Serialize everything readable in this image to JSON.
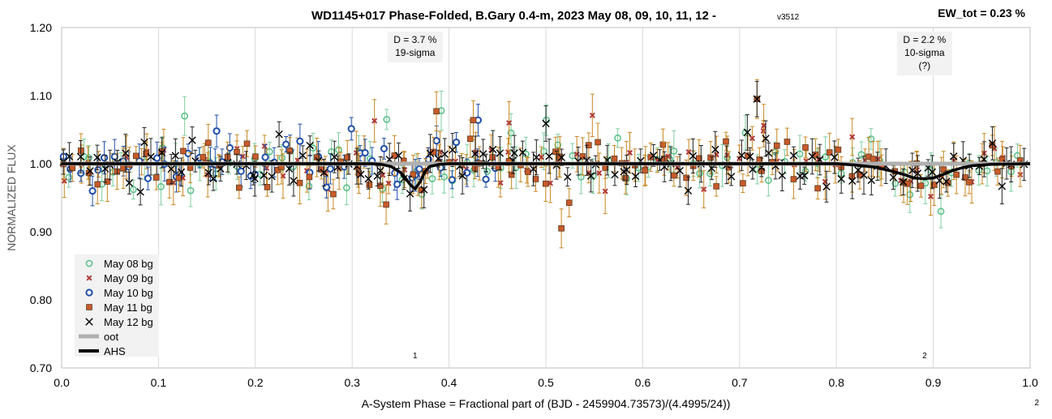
{
  "chart_data": {
    "type": "scatter",
    "title": "WD1145+017 Phase-Folded, B.Gary 0.4-m, 2023 May 08, 09, 10, 11, 12 -",
    "version": "v3512",
    "ew_total": "EW_tot = 0.23 %",
    "xlabel": "A-System Phase = Fractional part of (BJD - 2459904.73573)/(4.4995/24))",
    "ylabel": "NORMALIZED FLUX",
    "xlim": [
      0.0,
      1.0
    ],
    "ylim": [
      0.7,
      1.2
    ],
    "xticks": [
      "0.0",
      "0.1",
      "0.2",
      "0.3",
      "0.4",
      "0.5",
      "0.6",
      "0.7",
      "0.8",
      "0.9",
      "1.0"
    ],
    "yticks": [
      "0.70",
      "0.80",
      "0.90",
      "1.00",
      "1.10",
      "1.20"
    ],
    "grid": "vertical",
    "legend_position": "bottom-left",
    "corner_label": "2",
    "annotations": [
      {
        "id": "dip1",
        "x": 0.365,
        "line1": "D = 3.7 %",
        "line2": "19-sigma",
        "line3": "",
        "marker": "1"
      },
      {
        "id": "dip2",
        "x": 0.891,
        "line1": "D = 2.2 %",
        "line2": "10-sigma",
        "line3": "(?)",
        "marker": "2"
      }
    ],
    "colors": {
      "may08": "#5fc28c",
      "may09": "#b03a3a",
      "may10": "#1f4fa8",
      "may11": "#c85a2a",
      "may12": "#000000",
      "may08_err": "#7fcf9f",
      "may09_err": "#c8861f",
      "may10_err": "#1f4fa8",
      "may11_err": "#c8861f",
      "may12_err": "#222222",
      "oot": "#b0b0b0",
      "ahs": "#000000"
    },
    "series": [
      {
        "key": "may08",
        "name": "May 08 bg",
        "marker": "open-circle",
        "x_start": 0.005,
        "x_end": 0.995,
        "count": 90,
        "seed": 11,
        "scatter": 0.028,
        "err": 0.022,
        "pts": [
          [
            0.127,
            1.07
          ],
          [
            0.392,
            1.078
          ]
        ]
      },
      {
        "key": "may09",
        "name": "May 09 bg",
        "marker": "x-small",
        "x_start": 0.0,
        "x_end": 0.995,
        "count": 80,
        "seed": 23,
        "scatter": 0.026,
        "err": 0.024,
        "pts": [
          [
            0.548,
            1.071
          ],
          [
            0.725,
            1.056
          ],
          [
            0.323,
            1.063
          ],
          [
            0.462,
            1.06
          ]
        ]
      },
      {
        "key": "may10",
        "name": "May 10 bg",
        "marker": "open-circle-blue",
        "x_start": 0.0,
        "x_end": 0.45,
        "count": 52,
        "seed": 37,
        "scatter": 0.026,
        "err": 0.018,
        "pts": [
          [
            0.16,
            1.048
          ],
          [
            0.43,
            1.064
          ],
          [
            0.365,
            0.983
          ]
        ]
      },
      {
        "key": "may11",
        "name": "May 11 bg",
        "marker": "filled-square",
        "x_start": 0.0,
        "x_end": 0.995,
        "count": 120,
        "seed": 51,
        "scatter": 0.024,
        "err": 0.022,
        "pts": [
          [
            0.516,
            0.905
          ],
          [
            0.387,
            1.077
          ],
          [
            0.425,
            1.064
          ],
          [
            0.718,
            1.095
          ]
        ]
      },
      {
        "key": "may12",
        "name": "May 12 bg",
        "marker": "x-cross",
        "x_start": 0.0,
        "x_end": 0.995,
        "count": 130,
        "seed": 73,
        "scatter": 0.022,
        "err": 0.02,
        "pts": [
          [
            0.718,
            1.095
          ],
          [
            0.708,
            1.046
          ],
          [
            0.727,
            1.037
          ],
          [
            0.5,
            1.059
          ]
        ]
      },
      {
        "key": "oot",
        "name": "oot",
        "type": "line",
        "x": [
          0.0,
          1.0
        ],
        "y": [
          1.0,
          1.0
        ]
      },
      {
        "key": "ahs",
        "name": "AHS",
        "type": "line",
        "x": [
          0.0,
          0.32,
          0.33,
          0.34,
          0.35,
          0.355,
          0.36,
          0.365,
          0.37,
          0.375,
          0.38,
          0.39,
          0.4,
          0.8,
          0.82,
          0.84,
          0.86,
          0.87,
          0.88,
          0.89,
          0.9,
          0.91,
          0.92,
          0.93,
          0.94,
          0.96,
          1.0
        ],
        "y": [
          1.0,
          1.0,
          0.999,
          0.996,
          0.987,
          0.979,
          0.969,
          0.963,
          0.973,
          0.988,
          0.996,
          0.999,
          1.0,
          1.0,
          0.998,
          0.995,
          0.988,
          0.984,
          0.979,
          0.978,
          0.979,
          0.984,
          0.99,
          0.994,
          0.997,
          0.999,
          1.0
        ]
      }
    ]
  }
}
